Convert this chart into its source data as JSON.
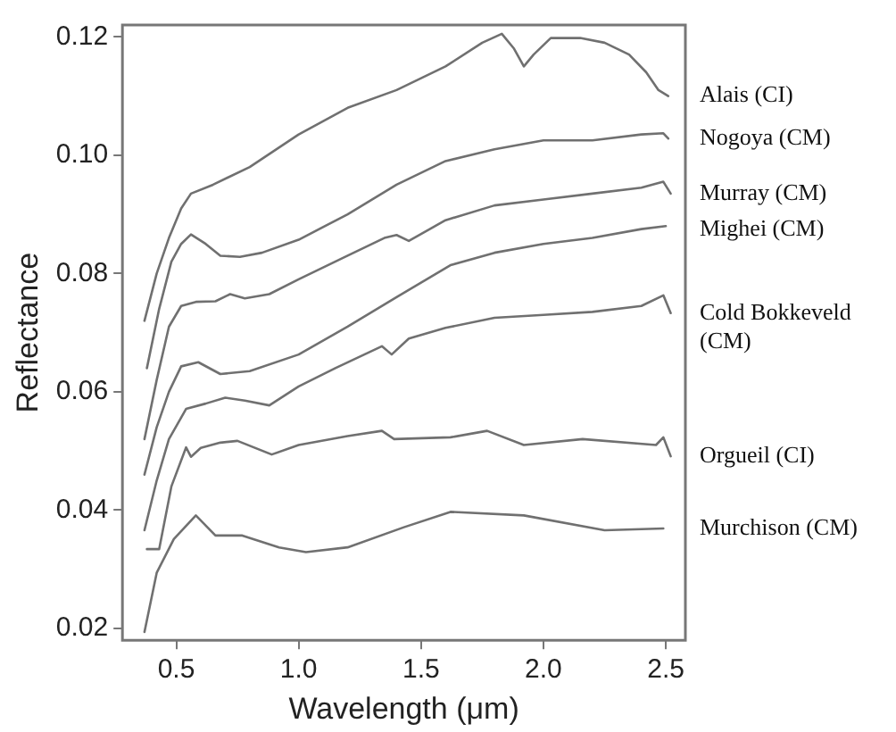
{
  "chart_data": {
    "type": "line",
    "xlabel": "Wavelength (μm)",
    "ylabel": "Reflectance",
    "xlim": [
      0.28,
      2.58
    ],
    "xticks": [
      {
        "value": 0.5,
        "label": "0.5"
      },
      {
        "value": 1.0,
        "label": "1.0"
      },
      {
        "value": 1.5,
        "label": "1.5"
      },
      {
        "value": 2.0,
        "label": "2.0"
      },
      {
        "value": 2.5,
        "label": "2.5"
      }
    ],
    "ylim": [
      0.018,
      0.122
    ],
    "yticks": [
      {
        "value": 0.02,
        "label": "0.02"
      },
      {
        "value": 0.04,
        "label": "0.04"
      },
      {
        "value": 0.06,
        "label": "0.06"
      },
      {
        "value": 0.08,
        "label": "0.08"
      },
      {
        "value": 0.1,
        "label": "0.10"
      },
      {
        "value": 0.12,
        "label": "0.12"
      }
    ],
    "grid": false,
    "legend": false,
    "marker": "none",
    "line_style": "solid",
    "series": [
      {
        "name": "Alais (CI)",
        "color": "#707070",
        "x": [
          0.37,
          0.42,
          0.47,
          0.52,
          0.56,
          0.65,
          0.8,
          1.0,
          1.2,
          1.4,
          1.6,
          1.75,
          1.83,
          1.88,
          1.92,
          1.96,
          2.03,
          2.15,
          2.25,
          2.35,
          2.42,
          2.47,
          2.51
        ],
        "values": [
          0.072,
          0.08,
          0.086,
          0.091,
          0.0935,
          0.095,
          0.098,
          0.1035,
          0.108,
          0.111,
          0.115,
          0.119,
          0.1205,
          0.118,
          0.115,
          0.117,
          0.1198,
          0.1198,
          0.119,
          0.117,
          0.114,
          0.111,
          0.11
        ]
      },
      {
        "name": "Nogoya (CM)",
        "color": "#707070",
        "x": [
          0.38,
          0.43,
          0.48,
          0.52,
          0.56,
          0.62,
          0.68,
          0.76,
          0.85,
          1.0,
          1.2,
          1.4,
          1.6,
          1.8,
          2.0,
          2.2,
          2.4,
          2.49,
          2.51
        ],
        "values": [
          0.064,
          0.074,
          0.082,
          0.085,
          0.0866,
          0.085,
          0.083,
          0.0828,
          0.0835,
          0.0857,
          0.09,
          0.095,
          0.099,
          0.101,
          0.1025,
          0.1025,
          0.1035,
          0.1037,
          0.1028
        ]
      },
      {
        "name": "Murray (CM)",
        "color": "#707070",
        "x": [
          0.37,
          0.42,
          0.47,
          0.52,
          0.58,
          0.66,
          0.72,
          0.78,
          0.88,
          1.0,
          1.2,
          1.35,
          1.4,
          1.45,
          1.6,
          1.8,
          2.0,
          2.2,
          2.4,
          2.49,
          2.52
        ],
        "values": [
          0.052,
          0.062,
          0.071,
          0.0745,
          0.0752,
          0.0753,
          0.0765,
          0.0758,
          0.0765,
          0.079,
          0.083,
          0.086,
          0.0865,
          0.0855,
          0.089,
          0.0915,
          0.0925,
          0.0935,
          0.0945,
          0.0955,
          0.0935
        ]
      },
      {
        "name": "Mighei (CM)",
        "color": "#707070",
        "x": [
          0.37,
          0.42,
          0.47,
          0.52,
          0.59,
          0.68,
          0.8,
          1.0,
          1.2,
          1.4,
          1.62,
          1.8,
          2.0,
          2.2,
          2.4,
          2.5
        ],
        "values": [
          0.046,
          0.054,
          0.06,
          0.0643,
          0.065,
          0.063,
          0.0635,
          0.0663,
          0.071,
          0.076,
          0.0814,
          0.0835,
          0.085,
          0.086,
          0.0875,
          0.088
        ]
      },
      {
        "name": "Cold Bokkeveld (CM)",
        "color": "#707070",
        "x": [
          0.37,
          0.42,
          0.47,
          0.54,
          0.62,
          0.7,
          0.78,
          0.88,
          1.0,
          1.15,
          1.34,
          1.38,
          1.45,
          1.6,
          1.8,
          2.0,
          2.2,
          2.4,
          2.49,
          2.52
        ],
        "values": [
          0.0366,
          0.045,
          0.052,
          0.0571,
          0.058,
          0.059,
          0.0585,
          0.0577,
          0.0609,
          0.064,
          0.0677,
          0.0663,
          0.069,
          0.0708,
          0.0725,
          0.073,
          0.0735,
          0.0745,
          0.0763,
          0.0733
        ]
      },
      {
        "name": "Orgueil (CI)",
        "color": "#707070",
        "x": [
          0.38,
          0.43,
          0.48,
          0.54,
          0.56,
          0.6,
          0.68,
          0.75,
          0.89,
          1.0,
          1.2,
          1.34,
          1.39,
          1.62,
          1.77,
          1.92,
          2.16,
          2.46,
          2.49,
          2.52
        ],
        "values": [
          0.0334,
          0.0334,
          0.044,
          0.0506,
          0.049,
          0.0505,
          0.0514,
          0.0517,
          0.0494,
          0.051,
          0.0525,
          0.0534,
          0.052,
          0.0523,
          0.0534,
          0.051,
          0.052,
          0.051,
          0.0523,
          0.0491
        ]
      },
      {
        "name": "Murchison (CM)",
        "color": "#707070",
        "x": [
          0.37,
          0.42,
          0.49,
          0.58,
          0.66,
          0.77,
          0.92,
          1.03,
          1.2,
          1.43,
          1.62,
          1.92,
          2.25,
          2.49
        ],
        "values": [
          0.0194,
          0.0294,
          0.0351,
          0.0391,
          0.0357,
          0.0357,
          0.0337,
          0.0329,
          0.0337,
          0.0371,
          0.0397,
          0.0391,
          0.0366,
          0.0369
        ]
      }
    ]
  }
}
